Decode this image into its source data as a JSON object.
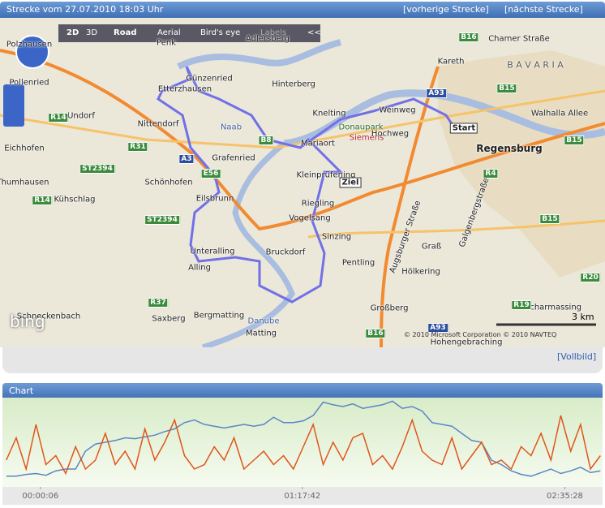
{
  "header": {
    "title": "Strecke vom 27.07.2010 18:03 Uhr",
    "prev": "[vorherige Strecke]",
    "next": "[nächste Strecke]"
  },
  "map": {
    "toolbar": [
      "2D",
      "3D",
      "Road",
      "Aerial",
      "Bird's eye",
      "Labels",
      "<<"
    ],
    "labels": [
      "Polzhausen",
      "Penk",
      "Adlersberg",
      "Günzenried",
      "Hinterberg",
      "Kareth",
      "Pollenried",
      "Etterzhausen",
      "Undorf",
      "Knelting",
      "Weinweg",
      "Donaupark",
      "Siemens",
      "Hochweg",
      "Regensburg",
      "Nittendorf",
      "Eichhofen",
      "Mariaort",
      "Grafenried",
      "Thumhausen",
      "Schönhofen",
      "Kleinprüfening",
      "Kühschlag",
      "Eilsbrunn",
      "Riegling",
      "Vogelsang",
      "Sinzing",
      "Graß",
      "Unteralling",
      "Bruckdorf",
      "Pentling",
      "Hölkering",
      "Alling",
      "Schneckenbach",
      "Saxberg",
      "Bergmatting",
      "Großberg",
      "Matting",
      "Scharmassing",
      "Hohengebraching",
      "B A V A R I A",
      "Naab",
      "Danube",
      "Chamer Straße",
      "Walhalla Allee",
      "Augsburger Straße",
      "Galgenbergstraße"
    ],
    "shields": [
      "B16",
      "B8",
      "A3",
      "E56",
      "B15",
      "R14",
      "R31",
      "ST2394",
      "R4",
      "A93",
      "R20",
      "R19",
      "R37",
      "B16",
      "B15",
      "R14",
      "ST2394",
      "A93",
      "B15"
    ],
    "markers": [
      "Start",
      "Ziel"
    ],
    "scale": "3 km",
    "copyright": "© 2010 Microsoft Corporation © 2010 NAVTEQ",
    "logo": "bing"
  },
  "footer": {
    "fullscreen": "[Vollbild]"
  },
  "chart_data": {
    "type": "line",
    "title": "Chart",
    "x": [
      -600,
      -424,
      -248,
      -72,
      104,
      280,
      456,
      632,
      808,
      984,
      1160,
      1336,
      1512,
      1688,
      1864,
      2040,
      2216,
      2392,
      2568,
      2744,
      2920,
      3096,
      3272,
      3448,
      3624,
      3800,
      3976,
      4152,
      4328,
      4504,
      4680,
      4856,
      5032,
      5208,
      5384,
      5560,
      5736,
      5912,
      6088,
      6264,
      6440,
      6616,
      6792,
      6968,
      7144,
      7320,
      7496,
      7672,
      7848,
      8024,
      8200,
      8376,
      8552,
      8728,
      8904,
      9080,
      9256,
      9432,
      9608,
      9784,
      9960
    ],
    "xlim": [
      -640,
      9970
    ],
    "xticks": [
      {
        "value": 6,
        "label": "00:00:06"
      },
      {
        "value": 4662,
        "label": "01:17:42"
      },
      {
        "value": 9328,
        "label": "02:35:28"
      }
    ],
    "ylim": [
      0,
      100
    ],
    "series": [
      {
        "color": "#5b86c4",
        "values": [
          12,
          12,
          14,
          15,
          13,
          18,
          20,
          20,
          40,
          48,
          50,
          52,
          55,
          54,
          56,
          58,
          62,
          65,
          72,
          75,
          70,
          68,
          66,
          68,
          70,
          68,
          70,
          78,
          72,
          72,
          74,
          80,
          95,
          92,
          90,
          93,
          88,
          90,
          92,
          96,
          88,
          90,
          85,
          72,
          70,
          68,
          60,
          52,
          50,
          30,
          25,
          18,
          14,
          12,
          16,
          20,
          15,
          18,
          22,
          16,
          18
        ]
      },
      {
        "color": "#e0541a",
        "values": [
          30,
          55,
          20,
          70,
          25,
          35,
          15,
          45,
          20,
          30,
          60,
          25,
          40,
          20,
          65,
          30,
          50,
          75,
          35,
          20,
          25,
          45,
          30,
          55,
          20,
          30,
          40,
          25,
          35,
          20,
          45,
          70,
          25,
          50,
          30,
          55,
          60,
          25,
          35,
          20,
          45,
          75,
          40,
          30,
          25,
          55,
          20,
          35,
          50,
          25,
          30,
          20,
          45,
          35,
          60,
          30,
          80,
          40,
          70,
          20,
          35
        ]
      }
    ]
  }
}
